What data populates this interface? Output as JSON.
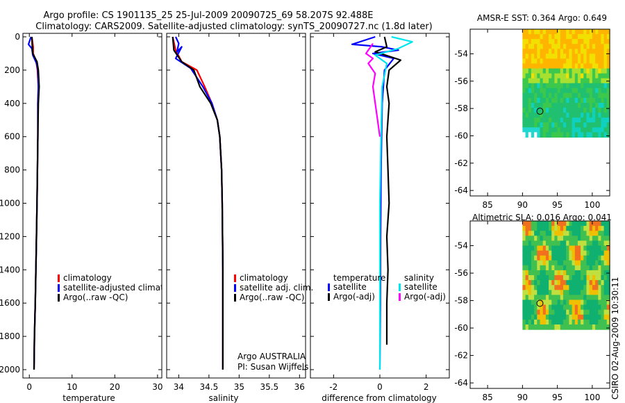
{
  "title_line1": "Argo profile: CS 1901135_25 25-Jul-2009 20090725_69 58.207S 92.488E",
  "title_line2": "Climatology: CARS2009. Satellite-adjusted climatology: synTS_20090727.nc (1.8d later)",
  "side_label": "CSIRO 02-Aug-2009 10:30:11",
  "colors": {
    "red": "#ff0000",
    "blue": "#0000ff",
    "black": "#000000",
    "cyan": "#00e5ee",
    "magenta": "#ff00ff"
  },
  "chart_data": [
    {
      "type": "line",
      "id": "temp",
      "xlabel": "temperature",
      "ylabel": "",
      "xlim": [
        -1.5,
        31
      ],
      "ylim": [
        2050,
        0
      ],
      "xticks": [
        0,
        10,
        20,
        30
      ],
      "yticks": [
        0,
        200,
        400,
        600,
        800,
        1000,
        1200,
        1400,
        1600,
        1800,
        2000
      ],
      "legend": [
        "climatology",
        "satellite-adjusted climatology",
        "Argo(..raw -QC)"
      ],
      "series": [
        {
          "name": "climatology",
          "color": "red",
          "points": [
            [
              0.6,
              0
            ],
            [
              0.9,
              60
            ],
            [
              0.9,
              100
            ],
            [
              1.6,
              150
            ],
            [
              1.9,
              200
            ],
            [
              2.1,
              300
            ],
            [
              2.0,
              400
            ],
            [
              2.0,
              600
            ],
            [
              1.9,
              800
            ],
            [
              1.8,
              1000
            ],
            [
              1.6,
              1300
            ],
            [
              1.4,
              1600
            ],
            [
              1.2,
              1800
            ],
            [
              1.1,
              2000
            ]
          ]
        },
        {
          "name": "satellite-adjusted climatology",
          "color": "blue",
          "points": [
            [
              0.4,
              0
            ],
            [
              -0.2,
              45
            ],
            [
              0.6,
              70
            ],
            [
              0.8,
              110
            ],
            [
              1.7,
              160
            ],
            [
              2.0,
              200
            ],
            [
              2.1,
              300
            ],
            [
              2.0,
              400
            ],
            [
              2.0,
              600
            ],
            [
              1.9,
              800
            ],
            [
              1.8,
              1000
            ],
            [
              1.6,
              1300
            ],
            [
              1.4,
              1600
            ],
            [
              1.2,
              1800
            ],
            [
              1.1,
              2000
            ]
          ]
        },
        {
          "name": "Argo(..raw -QC)",
          "color": "black",
          "points": [
            [
              0.6,
              0
            ],
            [
              0.7,
              60
            ],
            [
              0.8,
              100
            ],
            [
              1.8,
              150
            ],
            [
              2.1,
              200
            ],
            [
              2.3,
              300
            ],
            [
              2.1,
              400
            ],
            [
              2.0,
              600
            ],
            [
              1.9,
              800
            ],
            [
              1.8,
              1000
            ],
            [
              1.6,
              1300
            ],
            [
              1.4,
              1600
            ],
            [
              1.2,
              1800
            ],
            [
              1.1,
              2000
            ]
          ]
        }
      ]
    },
    {
      "type": "line",
      "id": "salt",
      "xlabel": "salinity",
      "ylabel": "",
      "xlim": [
        33.8,
        36.1
      ],
      "ylim": [
        2050,
        0
      ],
      "xticks": [
        34,
        34.5,
        35,
        35.5,
        36
      ],
      "legend": [
        "climatology",
        "satellite adj. clim.",
        "Argo(..raw -QC)"
      ],
      "series": [
        {
          "name": "climatology",
          "color": "red",
          "points": [
            [
              33.9,
              0
            ],
            [
              33.95,
              80
            ],
            [
              34.05,
              150
            ],
            [
              34.3,
              200
            ],
            [
              34.43,
              300
            ],
            [
              34.55,
              400
            ],
            [
              34.64,
              500
            ],
            [
              34.68,
              600
            ],
            [
              34.71,
              800
            ],
            [
              34.72,
              1000
            ],
            [
              34.73,
              1400
            ],
            [
              34.73,
              1800
            ],
            [
              34.73,
              2000
            ]
          ]
        },
        {
          "name": "satellite adj. clim.",
          "color": "blue",
          "points": [
            [
              33.95,
              0
            ],
            [
              34.0,
              40
            ],
            [
              33.97,
              90
            ],
            [
              34.05,
              60
            ],
            [
              33.95,
              130
            ],
            [
              34.2,
              190
            ],
            [
              34.4,
              300
            ],
            [
              34.55,
              400
            ],
            [
              34.64,
              500
            ],
            [
              34.68,
              600
            ],
            [
              34.71,
              800
            ],
            [
              34.72,
              1000
            ],
            [
              34.73,
              1400
            ],
            [
              34.73,
              1800
            ],
            [
              34.73,
              2000
            ]
          ]
        },
        {
          "name": "Argo(..raw -QC)",
          "color": "black",
          "points": [
            [
              33.9,
              0
            ],
            [
              33.92,
              80
            ],
            [
              34.05,
              150
            ],
            [
              34.25,
              200
            ],
            [
              34.35,
              300
            ],
            [
              34.53,
              400
            ],
            [
              34.64,
              500
            ],
            [
              34.68,
              600
            ],
            [
              34.71,
              800
            ],
            [
              34.72,
              1000
            ],
            [
              34.73,
              1400
            ],
            [
              34.73,
              1800
            ],
            [
              34.73,
              2000
            ]
          ]
        }
      ],
      "annotation": [
        "Argo AUSTRALIA",
        "PI: Susan Wijffels"
      ]
    },
    {
      "type": "line",
      "id": "diff",
      "xlabel": "difference from climatology",
      "ylabel": "",
      "xlim": [
        -3,
        3
      ],
      "ylim": [
        2050,
        0
      ],
      "xticks": [
        -2,
        0,
        2
      ],
      "legend_groups": [
        {
          "title": "temperature",
          "items": [
            "satellite",
            "Argo(-adj)"
          ]
        },
        {
          "title": "salinity",
          "items": [
            "satellite",
            "Argo(-adj)"
          ]
        }
      ],
      "series": [
        {
          "name": "temperature satellite",
          "color": "blue",
          "points": [
            [
              -0.2,
              0
            ],
            [
              -1.2,
              45
            ],
            [
              0.1,
              60
            ],
            [
              0.8,
              80
            ],
            [
              -0.3,
              100
            ],
            [
              0.6,
              130
            ],
            [
              0.2,
              200
            ],
            [
              0.1,
              400
            ],
            [
              0.05,
              800
            ],
            [
              0.03,
              1200
            ],
            [
              0.02,
              1600
            ],
            [
              0.0,
              2000
            ]
          ]
        },
        {
          "name": "temperature Argo(-adj)",
          "color": "black",
          "points": [
            [
              0.2,
              0
            ],
            [
              0.3,
              60
            ],
            [
              -0.2,
              90
            ],
            [
              0.9,
              140
            ],
            [
              0.4,
              200
            ],
            [
              0.3,
              300
            ],
            [
              0.4,
              400
            ],
            [
              0.3,
              600
            ],
            [
              0.35,
              800
            ],
            [
              0.4,
              1000
            ],
            [
              0.3,
              1200
            ],
            [
              0.35,
              1400
            ],
            [
              0.3,
              1600
            ],
            [
              0.3,
              1800
            ],
            [
              0.3,
              1850
            ]
          ]
        },
        {
          "name": "salinity satellite",
          "color": "cyan",
          "points": [
            [
              0.5,
              0
            ],
            [
              1.4,
              30
            ],
            [
              0.8,
              70
            ],
            [
              -0.2,
              110
            ],
            [
              0.3,
              160
            ],
            [
              0.1,
              300
            ],
            [
              0.05,
              600
            ],
            [
              0.0,
              1000
            ],
            [
              0.0,
              1400
            ],
            [
              0.0,
              2000
            ]
          ]
        },
        {
          "name": "salinity Argo(-adj)",
          "color": "magenta",
          "points": [
            [
              -0.3,
              40
            ],
            [
              -0.6,
              100
            ],
            [
              -0.3,
              130
            ],
            [
              -0.5,
              160
            ],
            [
              -0.2,
              220
            ],
            [
              -0.3,
              300
            ],
            [
              -0.1,
              500
            ],
            [
              0.0,
              600
            ]
          ]
        }
      ]
    },
    {
      "type": "heatmap",
      "id": "sst",
      "title": "AMSR-E SST: 0.364 Argo: 0.649",
      "xlim": [
        82.5,
        102.5
      ],
      "ylim": [
        -64.4,
        -52.2
      ],
      "xticks": [
        85,
        90,
        95,
        100
      ],
      "yticks": [
        -54,
        -56,
        -58,
        -60,
        -62,
        -64
      ],
      "marker": [
        92.5,
        -58.2
      ]
    },
    {
      "type": "heatmap",
      "id": "sla",
      "title": "Altimetric SLA: 0.016 Argo: 0.041",
      "xlim": [
        82.5,
        102.5
      ],
      "ylim": [
        -64.4,
        -52.2
      ],
      "xticks": [
        85,
        90,
        95,
        100
      ],
      "yticks": [
        -54,
        -56,
        -58,
        -60,
        -62,
        -64
      ],
      "marker": [
        92.5,
        -58.2
      ]
    }
  ]
}
